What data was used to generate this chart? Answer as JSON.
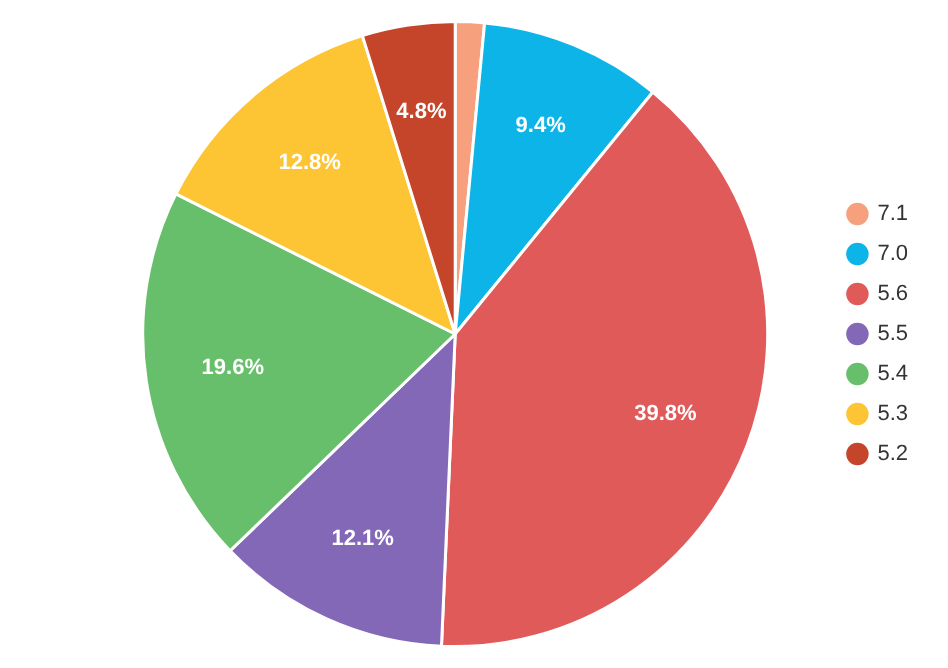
{
  "chart_data": {
    "type": "pie",
    "categories": [
      "7.1",
      "7.0",
      "5.6",
      "5.5",
      "5.4",
      "5.3",
      "5.2"
    ],
    "values": [
      1.5,
      9.4,
      39.8,
      12.1,
      19.6,
      12.8,
      4.8
    ],
    "value_labels": [
      null,
      "9.4%",
      "39.8%",
      "12.1%",
      "19.6%",
      "12.8%",
      "4.8%"
    ],
    "colors": [
      "#f6a07e",
      "#0db4e8",
      "#e15a5a",
      "#8468b8",
      "#68bf6b",
      "#fdc534",
      "#c4452a"
    ],
    "legend": "right"
  }
}
